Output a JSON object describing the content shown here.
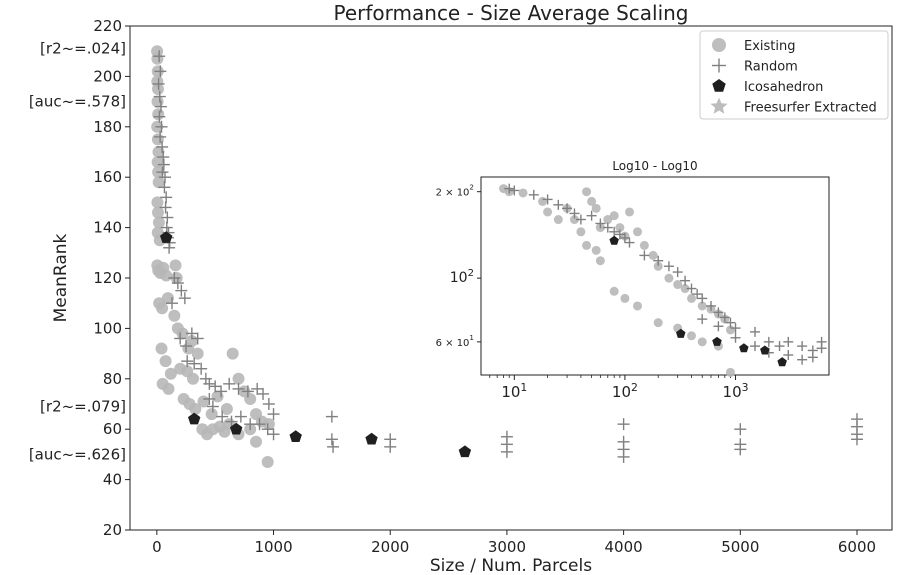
{
  "chart_data": [
    {
      "type": "scatter",
      "title": "Performance - Size Average Scaling",
      "xlabel": "Size / Num. Parcels",
      "ylabel": "MeanRank",
      "xlim": [
        -230,
        6300
      ],
      "ylim": [
        20,
        220
      ],
      "xticks": [
        0,
        1000,
        2000,
        3000,
        4000,
        5000,
        6000
      ],
      "yticks": [
        20,
        40,
        60,
        80,
        100,
        120,
        140,
        160,
        180,
        200,
        220
      ],
      "grid": false,
      "legend_position": "top-right",
      "side_annotations": [
        {
          "text": "[r2~=.024]",
          "y": 211
        },
        {
          "text": "[auc~=.578]",
          "y": 190
        },
        {
          "text": "[r2~=.079]",
          "y": 69
        },
        {
          "text": "[auc~=.626]",
          "y": 50
        }
      ],
      "series": [
        {
          "name": "Existing",
          "marker": "circle",
          "color": "#b7b7b7",
          "points": [
            [
              2,
              210
            ],
            [
              5,
              207
            ],
            [
              8,
              202
            ],
            [
              4,
              198
            ],
            [
              10,
              195
            ],
            [
              6,
              190
            ],
            [
              12,
              185
            ],
            [
              3,
              180
            ],
            [
              9,
              175
            ],
            [
              14,
              170
            ],
            [
              7,
              166
            ],
            [
              11,
              162
            ],
            [
              16,
              158
            ],
            [
              5,
              150
            ],
            [
              10,
              146
            ],
            [
              18,
              142
            ],
            [
              8,
              138
            ],
            [
              25,
              135
            ],
            [
              4,
              125
            ],
            [
              12,
              123
            ],
            [
              30,
              122
            ],
            [
              55,
              124
            ],
            [
              80,
              121
            ],
            [
              160,
              125
            ],
            [
              170,
              120
            ],
            [
              20,
              110
            ],
            [
              45,
              108
            ],
            [
              95,
              112
            ],
            [
              150,
              105
            ],
            [
              180,
              100
            ],
            [
              220,
              98
            ],
            [
              270,
              92
            ],
            [
              300,
              95
            ],
            [
              350,
              90
            ],
            [
              40,
              92
            ],
            [
              75,
              87
            ],
            [
              120,
              82
            ],
            [
              200,
              84
            ],
            [
              260,
              83
            ],
            [
              310,
              80
            ],
            [
              50,
              78
            ],
            [
              100,
              76
            ],
            [
              230,
              72
            ],
            [
              280,
              70
            ],
            [
              330,
              68
            ],
            [
              400,
              71
            ],
            [
              470,
              66
            ],
            [
              520,
              73
            ],
            [
              600,
              68
            ],
            [
              650,
              90
            ],
            [
              700,
              80
            ],
            [
              750,
              75
            ],
            [
              800,
              72
            ],
            [
              850,
              66
            ],
            [
              900,
              63
            ],
            [
              960,
              62
            ],
            [
              390,
              60
            ],
            [
              430,
              58
            ],
            [
              480,
              60
            ],
            [
              540,
              61
            ],
            [
              580,
              59
            ],
            [
              620,
              62
            ],
            [
              700,
              58
            ],
            [
              800,
              60
            ],
            [
              850,
              55
            ],
            [
              950,
              47
            ]
          ]
        },
        {
          "name": "Random",
          "marker": "plus",
          "color": "#808080",
          "points": [
            [
              20,
              208
            ],
            [
              30,
              202
            ],
            [
              15,
              197
            ],
            [
              25,
              192
            ],
            [
              35,
              188
            ],
            [
              22,
              184
            ],
            [
              40,
              180
            ],
            [
              28,
              176
            ],
            [
              45,
              172
            ],
            [
              55,
              168
            ],
            [
              60,
              165
            ],
            [
              48,
              162
            ],
            [
              70,
              160
            ],
            [
              65,
              156
            ],
            [
              80,
              152
            ],
            [
              75,
              148
            ],
            [
              90,
              144
            ],
            [
              85,
              140
            ],
            [
              100,
              138
            ],
            [
              95,
              136
            ],
            [
              110,
              134
            ],
            [
              105,
              132
            ],
            [
              150,
              120
            ],
            [
              180,
              118
            ],
            [
              210,
              115
            ],
            [
              240,
              112
            ],
            [
              130,
              110
            ],
            [
              200,
              96
            ],
            [
              250,
              93
            ],
            [
              300,
              98
            ],
            [
              350,
              96
            ],
            [
              260,
              87
            ],
            [
              320,
              86
            ],
            [
              380,
              84
            ],
            [
              420,
              80
            ],
            [
              450,
              78
            ],
            [
              500,
              77
            ],
            [
              550,
              75
            ],
            [
              620,
              78
            ],
            [
              700,
              76
            ],
            [
              780,
              75
            ],
            [
              860,
              76
            ],
            [
              910,
              74
            ],
            [
              960,
              70
            ],
            [
              1000,
              66
            ],
            [
              450,
              72
            ],
            [
              480,
              69
            ],
            [
              560,
              65
            ],
            [
              640,
              63
            ],
            [
              720,
              65
            ],
            [
              800,
              62
            ],
            [
              880,
              62
            ],
            [
              950,
              60
            ],
            [
              1000,
              58
            ],
            [
              1500,
              65
            ],
            [
              1500,
              56
            ],
            [
              1510,
              53
            ],
            [
              2000,
              56
            ],
            [
              2000,
              53
            ],
            [
              3000,
              57
            ],
            [
              3000,
              54
            ],
            [
              3000,
              51
            ],
            [
              4000,
              62
            ],
            [
              4000,
              55
            ],
            [
              4000,
              52
            ],
            [
              4000,
              49
            ],
            [
              5000,
              60
            ],
            [
              5000,
              54
            ],
            [
              5000,
              52
            ],
            [
              6000,
              64
            ],
            [
              6000,
              61
            ],
            [
              6000,
              58
            ],
            [
              6000,
              56
            ]
          ]
        },
        {
          "name": "Icosahedron",
          "marker": "pentagon",
          "color": "#1f1f1f",
          "points": [
            [
              80,
              136
            ],
            [
              320,
              64
            ],
            [
              680,
              60
            ],
            [
              1190,
              57
            ],
            [
              1840,
              56
            ],
            [
              2640,
              51
            ]
          ]
        },
        {
          "name": "Freesurfer Extracted",
          "marker": "star",
          "color": "#bdbdbd",
          "points": []
        }
      ]
    },
    {
      "type": "scatter",
      "title": "Log10 - Log10",
      "xscale": "log",
      "yscale": "log",
      "xlim": [
        5,
        7000
      ],
      "ylim": [
        46,
        225
      ],
      "xticks": [
        10,
        100,
        1000
      ],
      "xtick_labels": [
        "10^1",
        "10^2",
        "10^3"
      ],
      "ytick_labels": [
        {
          "value": 200,
          "text": "2 × 10^2"
        },
        {
          "value": 100,
          "text": "10^2"
        },
        {
          "value": 60,
          "text": "6 × 10^1"
        }
      ],
      "series": [
        {
          "name": "Existing",
          "marker": "circle",
          "color": "#b7b7b7",
          "points": [
            [
              8,
              205
            ],
            [
              9,
              200
            ],
            [
              12,
              198
            ],
            [
              18,
              185
            ],
            [
              20,
              170
            ],
            [
              25,
              160
            ],
            [
              30,
              175
            ],
            [
              35,
              160
            ],
            [
              40,
              145
            ],
            [
              45,
              200
            ],
            [
              50,
              185
            ],
            [
              55,
              175
            ],
            [
              45,
              130
            ],
            [
              55,
              125
            ],
            [
              60,
              150
            ],
            [
              70,
              160
            ],
            [
              80,
              165
            ],
            [
              90,
              150
            ],
            [
              100,
              140
            ],
            [
              110,
              170
            ],
            [
              130,
              145
            ],
            [
              150,
              130
            ],
            [
              180,
              120
            ],
            [
              200,
              110
            ],
            [
              250,
              100
            ],
            [
              300,
              95
            ],
            [
              350,
              92
            ],
            [
              400,
              85
            ],
            [
              500,
              80
            ],
            [
              600,
              78
            ],
            [
              700,
              75
            ],
            [
              800,
              72
            ],
            [
              900,
              66
            ],
            [
              60,
              115
            ],
            [
              80,
              90
            ],
            [
              100,
              85
            ],
            [
              130,
              80
            ],
            [
              200,
              70
            ],
            [
              300,
              67
            ],
            [
              400,
              63
            ],
            [
              500,
              60
            ],
            [
              700,
              58
            ],
            [
              900,
              47
            ]
          ]
        },
        {
          "name": "Random",
          "marker": "plus",
          "color": "#808080",
          "points": [
            [
              9,
              205
            ],
            [
              10,
              202
            ],
            [
              15,
              195
            ],
            [
              20,
              188
            ],
            [
              25,
              180
            ],
            [
              30,
              175
            ],
            [
              35,
              168
            ],
            [
              40,
              160
            ],
            [
              50,
              165
            ],
            [
              60,
              155
            ],
            [
              70,
              150
            ],
            [
              80,
              145
            ],
            [
              90,
              142
            ],
            [
              100,
              138
            ],
            [
              110,
              133
            ],
            [
              150,
              120
            ],
            [
              200,
              115
            ],
            [
              250,
              110
            ],
            [
              300,
              105
            ],
            [
              350,
              98
            ],
            [
              400,
              92
            ],
            [
              450,
              88
            ],
            [
              500,
              85
            ],
            [
              600,
              80
            ],
            [
              700,
              76
            ],
            [
              800,
              73
            ],
            [
              900,
              70
            ],
            [
              1000,
              67
            ],
            [
              1500,
              65
            ],
            [
              2000,
              60
            ],
            [
              2500,
              58
            ],
            [
              3000,
              60
            ],
            [
              4000,
              58
            ],
            [
              5000,
              56
            ],
            [
              6000,
              60
            ],
            [
              500,
              72
            ],
            [
              700,
              68
            ],
            [
              1000,
              62
            ],
            [
              1500,
              58
            ],
            [
              2000,
              55
            ],
            [
              3000,
              54
            ],
            [
              4000,
              52
            ],
            [
              5000,
              53
            ],
            [
              6000,
              57
            ]
          ]
        },
        {
          "name": "Icosahedron",
          "marker": "pentagon",
          "color": "#1f1f1f",
          "points": [
            [
              80,
              135
            ],
            [
              320,
              64
            ],
            [
              680,
              60
            ],
            [
              1190,
              57
            ],
            [
              1840,
              56
            ],
            [
              2640,
              51
            ]
          ]
        }
      ]
    }
  ]
}
